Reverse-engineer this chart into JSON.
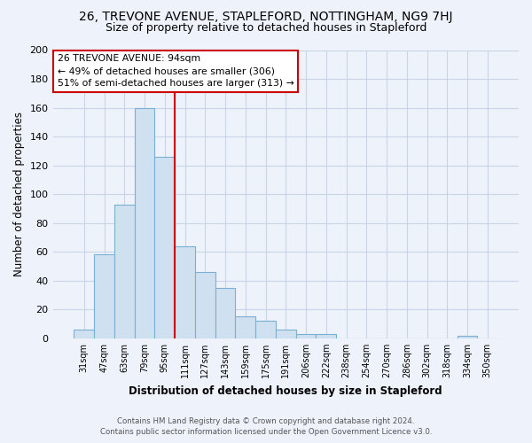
{
  "title": "26, TREVONE AVENUE, STAPLEFORD, NOTTINGHAM, NG9 7HJ",
  "subtitle": "Size of property relative to detached houses in Stapleford",
  "xlabel": "Distribution of detached houses by size in Stapleford",
  "ylabel": "Number of detached properties",
  "bar_labels": [
    "31sqm",
    "47sqm",
    "63sqm",
    "79sqm",
    "95sqm",
    "111sqm",
    "127sqm",
    "143sqm",
    "159sqm",
    "175sqm",
    "191sqm",
    "206sqm",
    "222sqm",
    "238sqm",
    "254sqm",
    "270sqm",
    "286sqm",
    "302sqm",
    "318sqm",
    "334sqm",
    "350sqm"
  ],
  "bar_values": [
    6,
    58,
    93,
    160,
    126,
    64,
    46,
    35,
    15,
    12,
    6,
    3,
    3,
    0,
    0,
    0,
    0,
    0,
    0,
    2,
    0
  ],
  "bar_color": "#cfe0f0",
  "bar_edge_color": "#7ab0d4",
  "vline_color": "#cc0000",
  "vline_index": 4,
  "ylim": [
    0,
    200
  ],
  "yticks": [
    0,
    20,
    40,
    60,
    80,
    100,
    120,
    140,
    160,
    180,
    200
  ],
  "annotation_title": "26 TREVONE AVENUE: 94sqm",
  "annotation_line1": "← 49% of detached houses are smaller (306)",
  "annotation_line2": "51% of semi-detached houses are larger (313) →",
  "footer_line1": "Contains HM Land Registry data © Crown copyright and database right 2024.",
  "footer_line2": "Contains public sector information licensed under the Open Government Licence v3.0.",
  "background_color": "#eef2fa",
  "grid_color": "#c8d4e8"
}
